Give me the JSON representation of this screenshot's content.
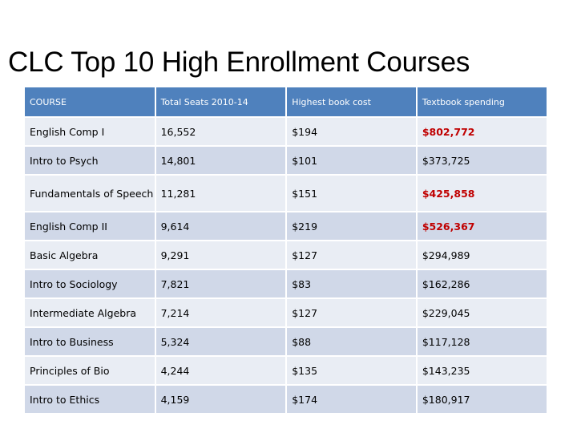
{
  "title": "CLC Top 10 High Enrollment Courses",
  "table": {
    "headers": [
      "COURSE",
      "Total Seats 2010-14",
      "Highest book cost",
      "Textbook spending"
    ],
    "rows": [
      {
        "course": "English Comp I",
        "seats": "16,552",
        "cost": "$194",
        "spending": "$802,772",
        "spending_highlight": true
      },
      {
        "course": "Intro to Psych",
        "seats": "14,801",
        "cost": "$101",
        "spending": "$373,725",
        "spending_highlight": false
      },
      {
        "course": "Fundamentals of Speech",
        "seats": "11,281",
        "cost": "$151",
        "spending": "$425,858",
        "spending_highlight": true
      },
      {
        "course": "English Comp II",
        "seats": "9,614",
        "cost": "$219",
        "spending": "$526,367",
        "spending_highlight": true
      },
      {
        "course": "Basic Algebra",
        "seats": "9,291",
        "cost": "$127",
        "spending": "$294,989",
        "spending_highlight": false
      },
      {
        "course": "Intro to Sociology",
        "seats": "7,821",
        "cost": "$83",
        "spending": "$162,286",
        "spending_highlight": false
      },
      {
        "course": "Intermediate Algebra",
        "seats": "7,214",
        "cost": "$127",
        "spending": "$229,045",
        "spending_highlight": false
      },
      {
        "course": "Intro to Business",
        "seats": "5,324",
        "cost": "$88",
        "spending": "$117,128",
        "spending_highlight": false
      },
      {
        "course": "Principles of Bio",
        "seats": "4,244",
        "cost": "$135",
        "spending": "$143,235",
        "spending_highlight": false
      },
      {
        "course": "Intro to Ethics",
        "seats": "4,159",
        "cost": "$174",
        "spending": "$180,917",
        "spending_highlight": false
      }
    ]
  },
  "colors": {
    "header_bg": "#4f81bd",
    "row_odd_bg": "#e9edf4",
    "row_even_bg": "#d0d8e8",
    "highlight_text": "#c00000"
  }
}
